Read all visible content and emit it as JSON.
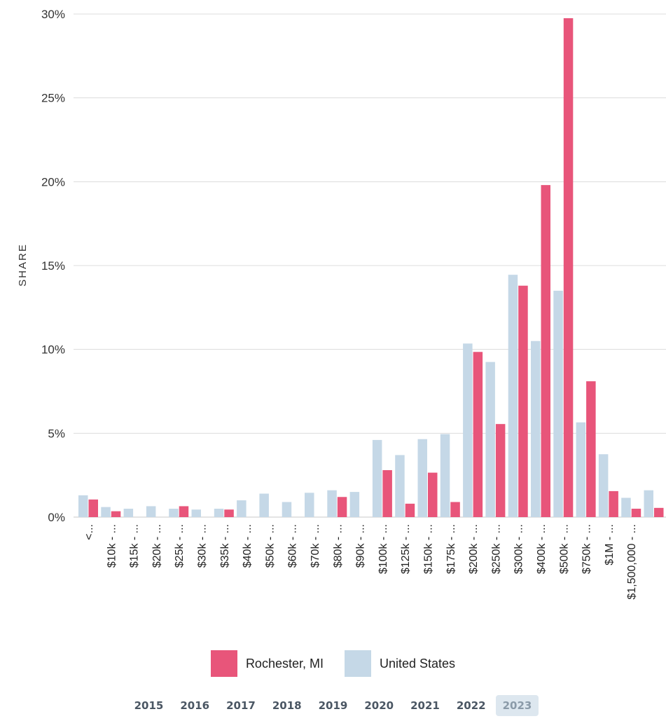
{
  "chart_data": {
    "type": "bar",
    "ylabel": "SHARE",
    "xlabel": "",
    "ylim": [
      0,
      30
    ],
    "yticks": [
      "0%",
      "5%",
      "10%",
      "15%",
      "20%",
      "25%",
      "30%"
    ],
    "ytick_values": [
      0,
      5,
      10,
      15,
      20,
      25,
      30
    ],
    "grid": true,
    "legend": "bottom",
    "categories": [
      "<...",
      "$10k - ...",
      "$15k - ...",
      "$20k - ...",
      "$25k - ...",
      "$30k - ...",
      "$35k - ...",
      "$40k - ...",
      "$50k - ...",
      "$60k - ...",
      "$70k - ...",
      "$80k - ...",
      "$90k - ...",
      "$100k - ...",
      "$125k - ...",
      "$150k - ...",
      "$175k - ...",
      "$200k - ...",
      "$250k - ...",
      "$300k - ...",
      "$400k - ...",
      "$500k - ...",
      "$750k - ...",
      "$1M - ...",
      "$1,500,000 - ...",
      ""
    ],
    "series": [
      {
        "name": "United States",
        "color": "#c5d8e7",
        "values": [
          1.3,
          0.6,
          0.5,
          0.65,
          0.5,
          0.45,
          0.5,
          1.0,
          1.4,
          0.9,
          1.45,
          1.6,
          1.5,
          4.6,
          3.7,
          4.65,
          4.95,
          10.35,
          9.25,
          14.45,
          10.5,
          13.5,
          5.65,
          3.75,
          1.15,
          1.6
        ]
      },
      {
        "name": "Rochester, MI",
        "color": "#e8557a",
        "values": [
          1.05,
          0.35,
          0,
          0,
          0.65,
          0,
          0.45,
          0,
          0,
          0,
          0,
          1.2,
          0,
          2.8,
          0.8,
          2.65,
          0.9,
          9.85,
          5.55,
          13.8,
          19.8,
          29.75,
          8.1,
          1.55,
          0.5,
          0.55
        ]
      }
    ]
  },
  "legend": [
    {
      "label": "Rochester, MI",
      "color": "#e8557a"
    },
    {
      "label": "United States",
      "color": "#c5d8e7"
    }
  ],
  "years": [
    "2015",
    "2016",
    "2017",
    "2018",
    "2019",
    "2020",
    "2021",
    "2022",
    "2023"
  ],
  "selected_year": "2023"
}
